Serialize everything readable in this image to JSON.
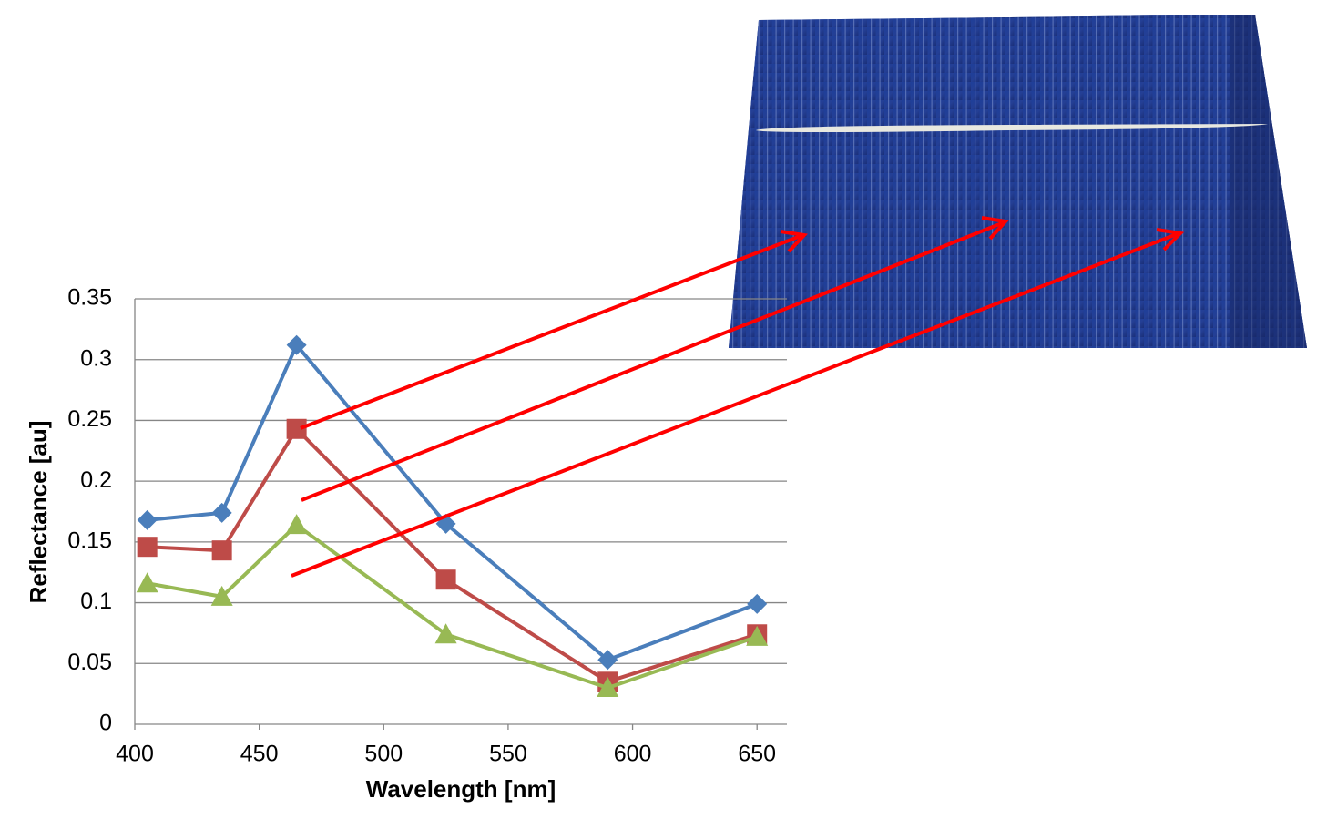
{
  "chart_data": {
    "type": "line",
    "x": [
      405,
      435,
      465,
      525,
      590,
      650
    ],
    "series": [
      {
        "color": "#4a7ebb",
        "marker": "diamond",
        "values": [
          0.168,
          0.174,
          0.312,
          0.165,
          0.053,
          0.099
        ]
      },
      {
        "color": "#be4b48",
        "marker": "square",
        "values": [
          0.146,
          0.143,
          0.243,
          0.119,
          0.035,
          0.074
        ]
      },
      {
        "color": "#98b954",
        "marker": "triangle",
        "values": [
          0.116,
          0.105,
          0.164,
          0.074,
          0.03,
          0.072
        ]
      }
    ],
    "xlabel": "Wavelength [nm]",
    "ylabel": "Reflectance [au]",
    "xlim": [
      400,
      662
    ],
    "xticks": [
      400,
      450,
      500,
      550,
      600,
      650
    ],
    "ylim": [
      0,
      0.35
    ],
    "yticks": [
      0,
      0.05,
      0.1,
      0.15,
      0.2,
      0.25,
      0.3,
      0.35
    ],
    "grid": true
  }
}
